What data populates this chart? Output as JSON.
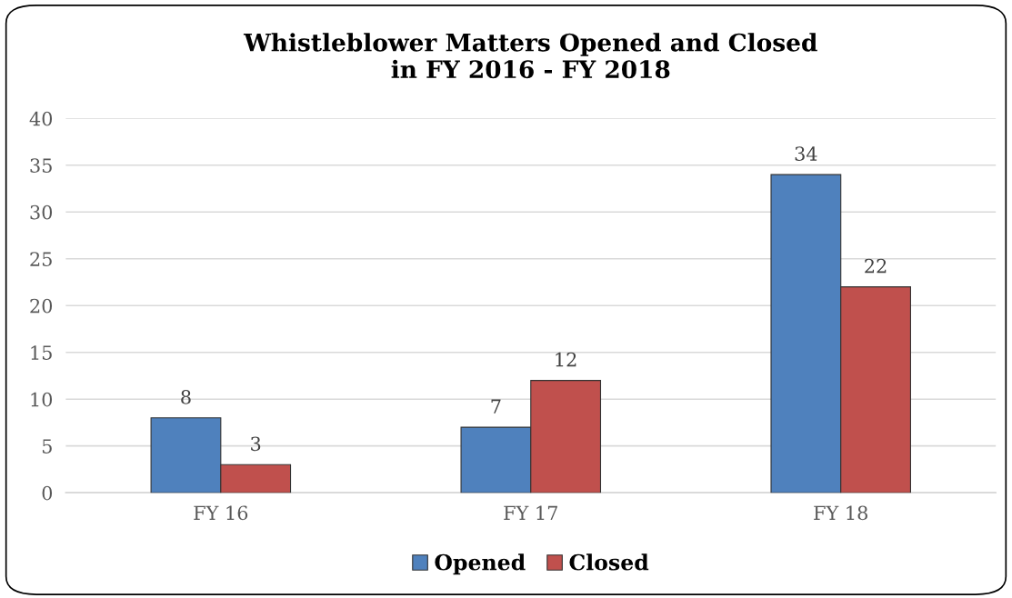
{
  "chart_data": {
    "type": "bar",
    "title": "Whistleblower Matters Opened and Closed\nin FY 2016 - FY 2018",
    "categories": [
      "FY 16",
      "FY 17",
      "FY 18"
    ],
    "series": [
      {
        "name": "Opened",
        "color": "#4f81bd",
        "values": [
          8,
          7,
          34
        ]
      },
      {
        "name": "Closed",
        "color": "#c0504d",
        "values": [
          3,
          12,
          22
        ]
      }
    ],
    "ylim": [
      0,
      40
    ],
    "yticks": [
      0,
      5,
      10,
      15,
      20,
      25,
      30,
      35,
      40
    ],
    "grid": "y",
    "legend": "bottom",
    "data_labels": true
  }
}
